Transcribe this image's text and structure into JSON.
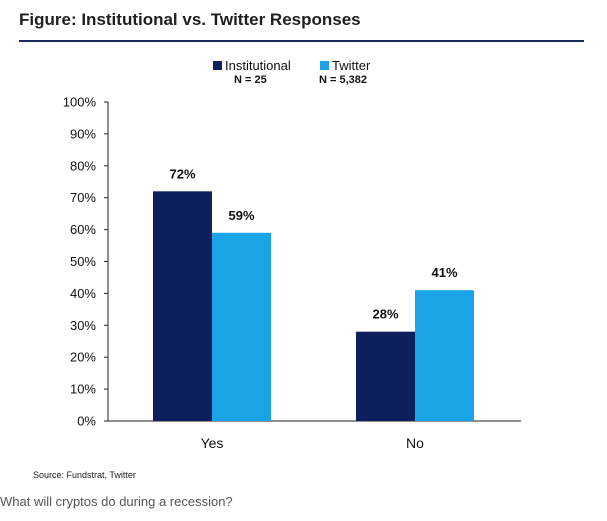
{
  "figure_title": "Figure: Institutional vs. Twitter Responses",
  "source": "Source: Fundstrat, Twitter",
  "caption": "What will cryptos do during a recession?",
  "colors": {
    "institutional": "#0d1f5c",
    "twitter": "#1aa3e6",
    "axis": "#222222"
  },
  "chart_data": {
    "type": "bar",
    "categories": [
      "Yes",
      "No"
    ],
    "series": [
      {
        "name": "Institutional",
        "sublabel": "N = 25",
        "values": [
          72,
          28
        ],
        "labels": [
          "72%",
          "28%"
        ]
      },
      {
        "name": "Twitter",
        "sublabel": "N = 5,382",
        "values": [
          59,
          41
        ],
        "labels": [
          "59%",
          "41%"
        ]
      }
    ],
    "ylim": [
      0,
      100
    ],
    "yticks": [
      "0%",
      "10%",
      "20%",
      "30%",
      "40%",
      "50%",
      "60%",
      "70%",
      "80%",
      "90%",
      "100%"
    ],
    "legend": "top-center",
    "grid": false
  }
}
